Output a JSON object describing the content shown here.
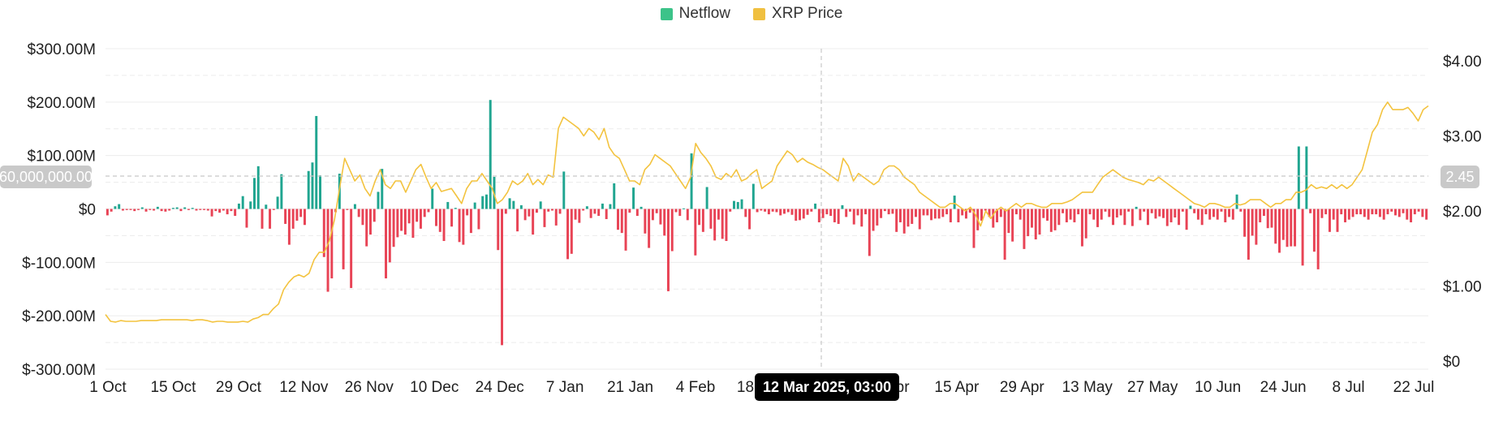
{
  "legend": [
    {
      "label": "Netflow",
      "color": "#3cc389"
    },
    {
      "label": "XRP Price",
      "color": "#f0c040"
    }
  ],
  "crosshair": {
    "left_value": "60,000,000.00",
    "right_value": "2.45",
    "time": "12 Mar 2025, 03:00"
  },
  "colors": {
    "positive": "#20a590",
    "negative": "#e84355",
    "price_line": "#f3c33f",
    "grid": "#ececec",
    "crosshair": "#c8c8c8"
  },
  "chart_data": {
    "type": "bar",
    "series": [
      {
        "name": "Netflow",
        "unit": "USD millions",
        "axis": "left",
        "values": [
          -12,
          -5,
          5,
          9,
          -3,
          -2,
          -2,
          -4,
          -2,
          3,
          -5,
          -2,
          -3,
          4,
          -4,
          -5,
          -3,
          2,
          3,
          -4,
          3,
          -2,
          2,
          -3,
          -2,
          -2,
          -3,
          -14,
          -4,
          -7,
          -3,
          -10,
          -4,
          -13,
          10,
          24,
          -35,
          14,
          58,
          80,
          -37,
          8,
          -37,
          -2,
          23,
          65,
          -28,
          -67,
          -37,
          -22,
          -15,
          -30,
          71,
          87,
          174,
          63,
          -90,
          -155,
          -130,
          -6,
          66,
          -113,
          -2,
          -148,
          9,
          -15,
          -30,
          -70,
          -48,
          -24,
          32,
          75,
          -130,
          -100,
          -71,
          -53,
          -41,
          -48,
          -27,
          -54,
          -24,
          -37,
          -15,
          -6,
          38,
          -32,
          -43,
          -60,
          13,
          -33,
          2,
          -62,
          -67,
          -12,
          -45,
          12,
          -38,
          24,
          27,
          204,
          60,
          -77,
          -255,
          -9,
          20,
          15,
          -42,
          7,
          -21,
          -14,
          -48,
          -7,
          14,
          -34,
          -5,
          -3,
          -31,
          -9,
          70,
          -94,
          -84,
          -20,
          -26,
          -3,
          5,
          -17,
          -9,
          -13,
          10,
          -19,
          9,
          48,
          -39,
          -45,
          -78,
          -7,
          40,
          -13,
          4,
          -46,
          -73,
          -21,
          -8,
          -29,
          -50,
          -154,
          -79,
          -6,
          -13,
          1,
          -21,
          104,
          -87,
          -30,
          -43,
          41,
          -37,
          -59,
          -20,
          -56,
          -60,
          -5,
          15,
          13,
          18,
          -15,
          -38,
          47,
          -6,
          -3,
          -5,
          -10,
          -5,
          -6,
          -12,
          -9,
          -6,
          -11,
          -22,
          -21,
          -18,
          -11,
          -5,
          10,
          -25,
          -17,
          -10,
          -13,
          -25,
          -28,
          7,
          -15,
          -5,
          -29,
          -12,
          -33,
          -10,
          -88,
          -41,
          -31,
          -17,
          -4,
          -10,
          -9,
          -43,
          -25,
          -46,
          -33,
          -28,
          -15,
          -38,
          -12,
          -12,
          -21,
          -18,
          -18,
          -15,
          -10,
          -25,
          25,
          -25,
          -12,
          -18,
          -7,
          -73,
          -40,
          -22,
          -3,
          -15,
          -35,
          -25,
          -15,
          -95,
          -45,
          -61,
          -10,
          -20,
          -75,
          -51,
          -35,
          -57,
          -48,
          -17,
          -22,
          -43,
          -40,
          -30,
          -8,
          -25,
          -20,
          -25,
          -10,
          -70,
          -55,
          -10,
          -20,
          -34,
          -20,
          -5,
          -15,
          -30,
          -16,
          -12,
          -30,
          -5,
          -32,
          4,
          -21,
          -5,
          -30,
          -8,
          -18,
          -14,
          -17,
          -32,
          -25,
          -16,
          -30,
          -5,
          -39,
          6,
          -8,
          -20,
          -30,
          -10,
          -20,
          -15,
          -20,
          -5,
          -25,
          -15,
          -20,
          27,
          -5,
          -52,
          -95,
          -50,
          -67,
          -25,
          -13,
          -36,
          -35,
          -65,
          -82,
          -58,
          -71,
          -70,
          -70,
          117,
          -106,
          117,
          -8,
          -80,
          -113,
          -17,
          -10,
          -43,
          -20,
          -43,
          -10,
          -25,
          -20,
          -15,
          -10,
          -10,
          -15,
          -20,
          -10,
          -10,
          -15,
          -20,
          -10,
          -5,
          -12,
          -15,
          -8,
          -20,
          -25,
          -10,
          -5,
          -15,
          -20
        ]
      },
      {
        "name": "XRP Price",
        "unit": "USD",
        "axis": "right",
        "values": [
          0.62,
          0.53,
          0.52,
          0.54,
          0.53,
          0.53,
          0.53,
          0.54,
          0.54,
          0.54,
          0.54,
          0.55,
          0.55,
          0.55,
          0.55,
          0.55,
          0.55,
          0.54,
          0.55,
          0.55,
          0.54,
          0.52,
          0.53,
          0.53,
          0.52,
          0.52,
          0.52,
          0.53,
          0.52,
          0.56,
          0.58,
          0.62,
          0.62,
          0.7,
          0.76,
          0.95,
          1.05,
          1.12,
          1.15,
          1.12,
          1.17,
          1.35,
          1.45,
          1.45,
          1.6,
          1.88,
          2.3,
          2.7,
          2.55,
          2.4,
          2.48,
          2.3,
          2.2,
          2.4,
          2.55,
          2.35,
          2.3,
          2.4,
          2.4,
          2.25,
          2.4,
          2.55,
          2.62,
          2.45,
          2.3,
          2.38,
          2.26,
          2.28,
          2.3,
          2.2,
          2.1,
          2.3,
          2.4,
          2.4,
          2.5,
          2.4,
          2.3,
          2.1,
          2.15,
          2.25,
          2.4,
          2.35,
          2.4,
          2.5,
          2.35,
          2.42,
          2.35,
          2.48,
          2.45,
          3.1,
          3.25,
          3.2,
          3.15,
          3.1,
          3.0,
          3.1,
          3.05,
          2.95,
          3.1,
          2.85,
          2.75,
          2.7,
          2.55,
          2.4,
          2.4,
          2.35,
          2.55,
          2.62,
          2.75,
          2.7,
          2.65,
          2.6,
          2.5,
          2.4,
          2.3,
          2.45,
          2.9,
          2.78,
          2.7,
          2.6,
          2.45,
          2.42,
          2.5,
          2.45,
          2.55,
          2.4,
          2.43,
          2.5,
          2.55,
          2.3,
          2.35,
          2.4,
          2.6,
          2.7,
          2.8,
          2.75,
          2.65,
          2.7,
          2.65,
          2.62,
          2.58,
          2.55,
          2.5,
          2.45,
          2.4,
          2.7,
          2.6,
          2.4,
          2.5,
          2.45,
          2.4,
          2.35,
          2.4,
          2.55,
          2.6,
          2.6,
          2.55,
          2.45,
          2.4,
          2.35,
          2.25,
          2.2,
          2.15,
          2.1,
          2.05,
          2.05,
          2.1,
          2.1,
          2.05,
          2.0,
          2.05,
          1.95,
          1.8,
          2.0,
          1.9,
          2.0,
          2.05,
          2.0,
          2.05,
          2.1,
          2.05,
          2.1,
          2.1,
          2.07,
          2.05,
          2.05,
          2.1,
          2.1,
          2.1,
          2.12,
          2.15,
          2.2,
          2.25,
          2.25,
          2.25,
          2.35,
          2.45,
          2.5,
          2.55,
          2.5,
          2.45,
          2.42,
          2.4,
          2.38,
          2.35,
          2.42,
          2.4,
          2.45,
          2.4,
          2.35,
          2.3,
          2.25,
          2.2,
          2.15,
          2.1,
          2.08,
          2.05,
          2.1,
          2.1,
          2.08,
          2.05,
          2.05,
          2.1,
          2.08,
          2.1,
          2.15,
          2.15,
          2.15,
          2.1,
          2.05,
          2.1,
          2.1,
          2.15,
          2.15,
          2.25,
          2.25,
          2.28,
          2.35,
          2.3,
          2.32,
          2.3,
          2.35,
          2.3,
          2.35,
          2.3,
          2.35,
          2.45,
          2.55,
          2.8,
          3.05,
          3.15,
          3.35,
          3.45,
          3.35,
          3.35,
          3.35,
          3.38,
          3.3,
          3.2,
          3.35,
          3.4
        ]
      }
    ],
    "x_tick_labels": [
      "1 Oct",
      "15 Oct",
      "29 Oct",
      "12 Nov",
      "26 Nov",
      "10 Dec",
      "24 Dec",
      "7 Jan",
      "21 Jan",
      "4 Feb",
      "18 Feb",
      "12 Mar 2025, 03:00",
      "1 Apr",
      "15 Apr",
      "29 Apr",
      "13 May",
      "27 May",
      "10 Jun",
      "24 Jun",
      "8 Jul",
      "22 Jul"
    ],
    "y_left_ticks": [
      "$300.00M",
      "$200.00M",
      "$100.00M",
      "$0",
      "$-100.00M",
      "$-200.00M",
      "$-300.00M"
    ],
    "y_left_range": [
      -300,
      300
    ],
    "y_right_ticks": [
      "$4.00",
      "$3.00",
      "$2.00",
      "$1.00",
      "$0"
    ],
    "y_right_range": [
      0,
      4
    ],
    "grid": true,
    "legend_position": "top-center"
  }
}
